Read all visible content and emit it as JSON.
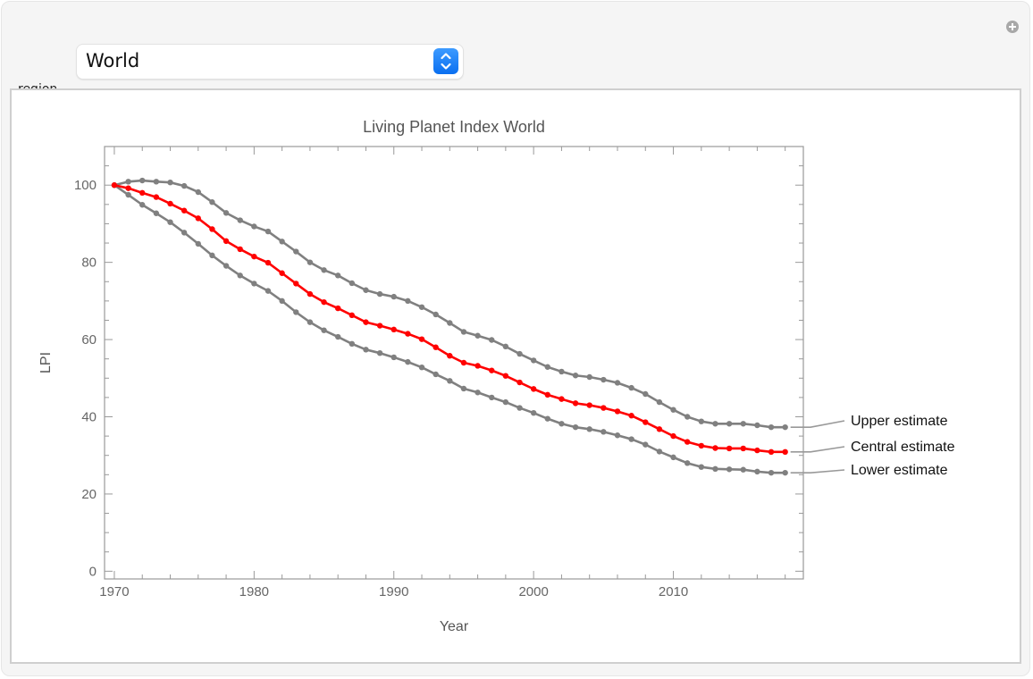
{
  "controls": {
    "region_label": "region",
    "region_value": "World",
    "stepper_icon": "up-down-chevron-icon",
    "add_icon": "plus-circle-icon"
  },
  "colors": {
    "central": "#ff0000",
    "bounds": "#808080",
    "axis": "#999999",
    "panel_bg": "#f5f5f5",
    "stepper": "#1a7ef5"
  },
  "chart_data": {
    "type": "line",
    "title": "Living Planet Index World",
    "xlabel": "Year",
    "ylabel": "LPI",
    "xlim": [
      1969.3,
      2019.3
    ],
    "ylim": [
      -2,
      110
    ],
    "x_ticks": [
      1970,
      1980,
      1990,
      2000,
      2010
    ],
    "y_ticks": [
      0,
      20,
      40,
      60,
      80,
      100
    ],
    "grid": false,
    "legend": "labels at right end of each series",
    "x": [
      1970,
      1971,
      1972,
      1973,
      1974,
      1975,
      1976,
      1977,
      1978,
      1979,
      1980,
      1981,
      1982,
      1983,
      1984,
      1985,
      1986,
      1987,
      1988,
      1989,
      1990,
      1991,
      1992,
      1993,
      1994,
      1995,
      1996,
      1997,
      1998,
      1999,
      2000,
      2001,
      2002,
      2003,
      2004,
      2005,
      2006,
      2007,
      2008,
      2009,
      2010,
      2011,
      2012,
      2013,
      2014,
      2015,
      2016,
      2017,
      2018
    ],
    "series": [
      {
        "name": "Upper estimate",
        "color": "#808080",
        "values": [
          100,
          100.9,
          101.2,
          100.9,
          100.7,
          99.8,
          98.2,
          95.6,
          92.8,
          90.9,
          89.3,
          88,
          85.4,
          82.8,
          80,
          78,
          76.6,
          74.6,
          72.8,
          71.8,
          71.1,
          70,
          68.4,
          66.5,
          64.3,
          62,
          61,
          59.9,
          58.2,
          56.3,
          54.6,
          52.9,
          51.7,
          50.7,
          50.3,
          49.6,
          48.8,
          47.5,
          45.9,
          43.8,
          41.8,
          40,
          38.8,
          38.2,
          38.2,
          38.2,
          37.8,
          37.3,
          37.3
        ]
      },
      {
        "name": "Central estimate",
        "color": "#ff0000",
        "values": [
          100,
          99.2,
          98,
          96.9,
          95.2,
          93.4,
          91.4,
          88.6,
          85.5,
          83.4,
          81.5,
          79.9,
          77.2,
          74.5,
          71.8,
          69.7,
          68.1,
          66.3,
          64.5,
          63.6,
          62.6,
          61.5,
          60.1,
          58,
          55.8,
          54,
          53.2,
          52,
          50.6,
          48.9,
          47.2,
          45.7,
          44.6,
          43.5,
          43,
          42.3,
          41.4,
          40.3,
          38.6,
          36.8,
          35,
          33.5,
          32.5,
          31.9,
          31.8,
          31.8,
          31.3,
          30.9,
          30.9
        ]
      },
      {
        "name": "Lower estimate",
        "color": "#808080",
        "values": [
          100,
          97.5,
          94.9,
          92.7,
          90.4,
          87.7,
          84.8,
          81.8,
          79.1,
          76.6,
          74.5,
          72.6,
          70,
          67.1,
          64.5,
          62.4,
          60.7,
          58.9,
          57.4,
          56.5,
          55.4,
          54.2,
          52.8,
          51,
          49.3,
          47.3,
          46.3,
          45,
          43.8,
          42.3,
          41,
          39.5,
          38.2,
          37.3,
          36.8,
          36.1,
          35.2,
          34.2,
          32.8,
          31,
          29.5,
          28,
          27,
          26.5,
          26.4,
          26.3,
          25.8,
          25.5,
          25.5
        ]
      }
    ]
  }
}
